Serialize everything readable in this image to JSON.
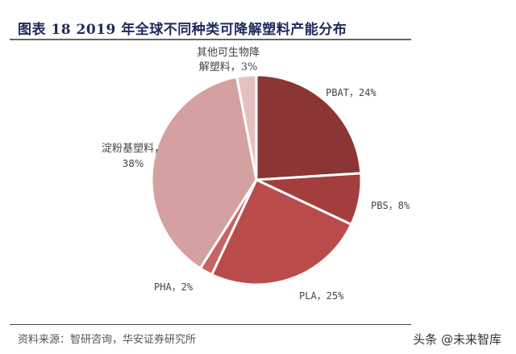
{
  "header": {
    "title": "图表 18 2019 年全球不同种类可降解塑料产能分布"
  },
  "footer": {
    "source": "资料来源：智研咨询，华安证券研究所",
    "watermark": "头条 @未来智库"
  },
  "chart_data": {
    "type": "pie",
    "title": "2019年全球不同种类可降解塑料产能分布",
    "start_angle_deg": 0,
    "direction": "clockwise",
    "slices": [
      {
        "name": "PBAT",
        "value": 24,
        "label": "PBAT，24%",
        "color": "#8b3535"
      },
      {
        "name": "PBS",
        "value": 8,
        "label": "PBS，8%",
        "color": "#a43e3c"
      },
      {
        "name": "PLA",
        "value": 25,
        "label": "PLA，25%",
        "color": "#b94c4a"
      },
      {
        "name": "PHA",
        "value": 2,
        "label": "PHA，2%",
        "color": "#c56462"
      },
      {
        "name": "淀粉基塑料",
        "value": 38,
        "label": "淀粉基塑料，38%",
        "color": "#d4a0a0"
      },
      {
        "name": "其他可生物降解塑料",
        "value": 3,
        "label": "其他可生物降解塑料，3%",
        "color": "#e4c1c1"
      }
    ]
  },
  "labels": {
    "pbat": "PBAT，24%",
    "pbs": "PBS，8%",
    "pla": "PLA，25%",
    "pha": "PHA，2%",
    "starch_line1": "淀粉基塑料，",
    "starch_line2": "38%",
    "other_line1": "其他可生物降",
    "other_line2": "解塑料，3%"
  }
}
